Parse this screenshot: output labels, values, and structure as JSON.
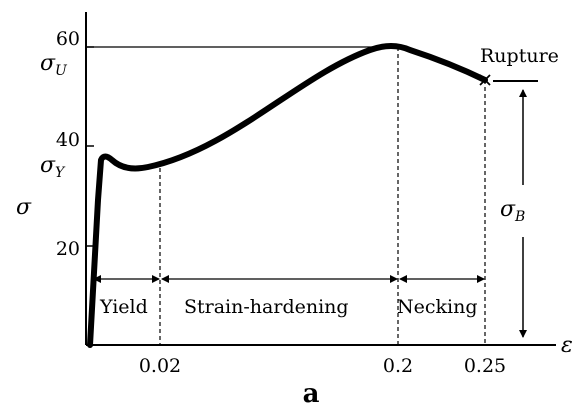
{
  "axes": {
    "y_symbol": "σ",
    "x_symbol": "ε",
    "y_ticks": [
      "60",
      "40",
      "20"
    ],
    "x_ticks": [
      "0.02",
      "0.2",
      "0.25"
    ]
  },
  "stress_labels": {
    "ultimate": {
      "symbol": "σ",
      "subscript": "U"
    },
    "yield": {
      "symbol": "σ",
      "subscript": "Y"
    },
    "breaking": {
      "symbol": "σ",
      "subscript": "B"
    }
  },
  "annotations": {
    "rupture": "Rupture",
    "regions": [
      "Yield",
      "Strain-hardening",
      "Necking"
    ]
  },
  "caption": "a"
}
